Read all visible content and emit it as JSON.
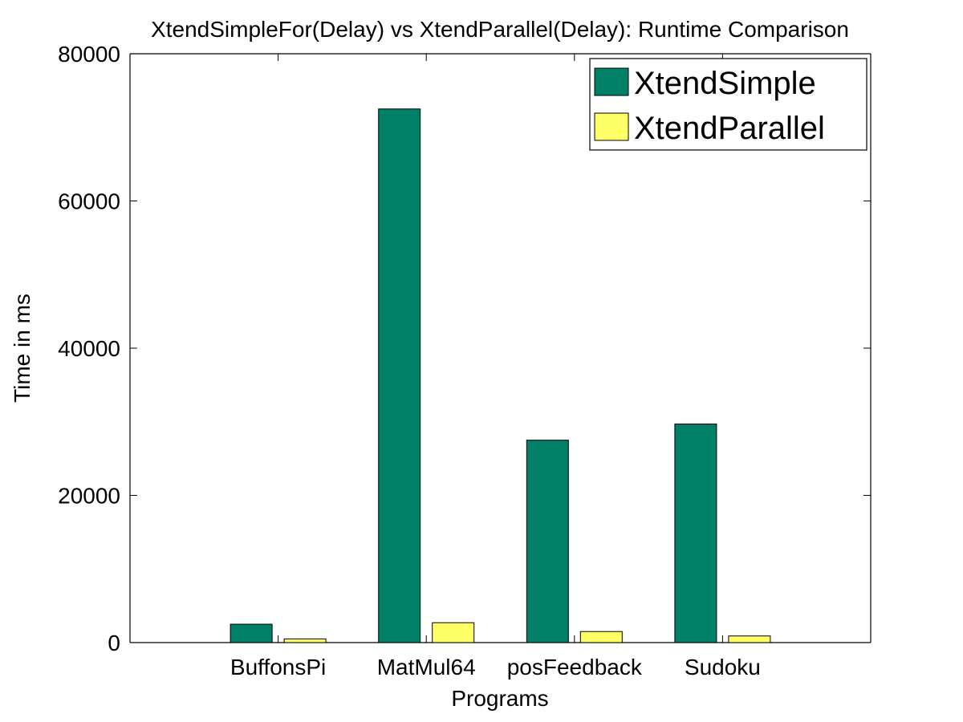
{
  "chart_data": {
    "type": "bar",
    "title": "XtendSimpleFor(Delay) vs XtendParallel(Delay): Runtime Comparison",
    "xlabel": "Programs",
    "ylabel": "Time in ms",
    "categories": [
      "BuffonsPi",
      "MatMul64",
      "posFeedback",
      "Sudoku"
    ],
    "series": [
      {
        "name": "XtendSimple",
        "values": [
          2500,
          72500,
          27500,
          29700
        ],
        "color": "#008066"
      },
      {
        "name": "XtendParallel",
        "values": [
          500,
          2700,
          1500,
          900
        ],
        "color": "#ffff66"
      }
    ],
    "ylim": [
      0,
      80000
    ],
    "yticks": [
      0,
      20000,
      40000,
      60000,
      80000
    ],
    "legend": "top-right",
    "grid": false
  }
}
